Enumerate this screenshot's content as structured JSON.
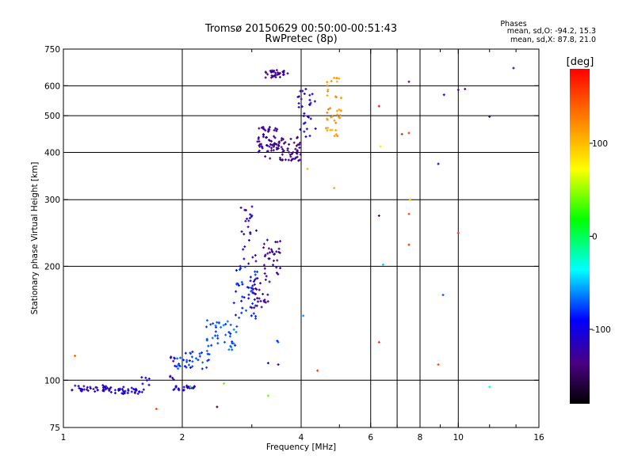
{
  "chart_data": {
    "type": "scatter",
    "title": "Tromsø 20150629 00:50:00-00:51:43",
    "subtitle": "RwPretec (8p)",
    "xlabel": "Frequency [MHz]",
    "ylabel": "Stationary phase Virtual Height [km]",
    "x_scale": "log2",
    "y_scale": "log",
    "xlim": [
      1,
      16
    ],
    "ylim": [
      75,
      750
    ],
    "x_ticks": [
      1,
      2,
      4,
      6,
      8,
      10,
      16
    ],
    "x_tick_labels": [
      "1",
      "2",
      "4",
      "6",
      "8",
      "10",
      "16"
    ],
    "x_minor_ticks": [
      3,
      5,
      7,
      9,
      12,
      14
    ],
    "x_grid_lines": [
      2,
      4,
      6,
      7,
      8,
      10
    ],
    "y_ticks": [
      75,
      100,
      200,
      300,
      400,
      500,
      600,
      750
    ],
    "y_tick_labels": [
      "75",
      "100",
      "200",
      "300",
      "400",
      "500",
      "600",
      "750"
    ],
    "y_grid_lines": [
      100,
      200,
      300,
      400,
      500,
      600
    ],
    "grid": true,
    "phase_stats": {
      "heading": "Phases",
      "line_o": "mean, sd,O: -94.2, 15.3",
      "line_x": "mean, sd,X:  87.8, 21.0"
    },
    "colorbar": {
      "label": "[deg]",
      "range": [
        -180,
        180
      ],
      "ticks": [
        100,
        0,
        -100
      ],
      "tick_labels": [
        "100",
        "0",
        "-100"
      ]
    },
    "series": [
      {
        "color_by": "phase_deg",
        "traces": [
          {
            "f_range": [
              1.05,
              1.32
            ],
            "h_range": [
              93,
              97
            ],
            "n": 40,
            "phase": -115
          },
          {
            "f_range": [
              1.32,
              1.62
            ],
            "h_range": [
              92,
              96
            ],
            "n": 32,
            "phase": -108
          },
          {
            "f_range": [
              1.55,
              1.65
            ],
            "h_range": [
              97,
              102
            ],
            "n": 6,
            "phase": -100
          },
          {
            "f_range": [
              1.85,
              1.92
            ],
            "h_range": [
              100,
              118
            ],
            "n": 10,
            "phase": -118
          },
          {
            "f_range": [
              1.9,
              2.15
            ],
            "h_range": [
              94,
              97
            ],
            "n": 24,
            "phase": -108
          },
          {
            "f_range": [
              1.93,
              2.35
            ],
            "h_range": [
              107,
              120
            ],
            "n": 36,
            "phase": -78
          },
          {
            "f_range": [
              2.3,
              2.75
            ],
            "h_range": [
              120,
              145
            ],
            "n": 40,
            "phase": -72
          },
          {
            "f_range": [
              2.7,
              3.1
            ],
            "h_range": [
              145,
              200
            ],
            "n": 44,
            "phase": -85
          },
          {
            "f_range": [
              2.8,
              3.1
            ],
            "h_range": [
              200,
              300
            ],
            "n": 26,
            "phase": -112
          },
          {
            "f_range": [
              3.0,
              3.35
            ],
            "h_range": [
              155,
              190
            ],
            "n": 30,
            "phase": -132
          },
          {
            "f_range": [
              3.2,
              3.55
            ],
            "h_range": [
              190,
              235
            ],
            "n": 32,
            "phase": -128
          },
          {
            "f_range": [
              3.1,
              3.5
            ],
            "h_range": [
              385,
              470
            ],
            "n": 60,
            "phase": -128
          },
          {
            "f_range": [
              3.5,
              4.0
            ],
            "h_range": [
              380,
              440
            ],
            "n": 55,
            "phase": -135
          },
          {
            "f_range": [
              3.9,
              4.35
            ],
            "h_range": [
              440,
              590
            ],
            "n": 30,
            "phase": -112
          },
          {
            "f_range": [
              3.25,
              3.7
            ],
            "h_range": [
              630,
              660
            ],
            "n": 35,
            "phase": -130
          },
          {
            "f_range": [
              4.6,
              5.05
            ],
            "h_range": [
              440,
              640
            ],
            "n": 40,
            "phase": 118
          }
        ],
        "points": [
          {
            "f": 1.07,
            "h": 116,
            "phase": 140
          },
          {
            "f": 1.72,
            "h": 84,
            "phase": 150
          },
          {
            "f": 2.45,
            "h": 85,
            "phase": -150
          },
          {
            "f": 2.55,
            "h": 98,
            "phase": 40
          },
          {
            "f": 2.1,
            "h": 96,
            "phase": 35
          },
          {
            "f": 3.3,
            "h": 91,
            "phase": 40
          },
          {
            "f": 3.5,
            "h": 110,
            "phase": -130
          },
          {
            "f": 3.3,
            "h": 111,
            "phase": -100
          },
          {
            "f": 3.48,
            "h": 127,
            "phase": -85
          },
          {
            "f": 3.5,
            "h": 126,
            "phase": -70
          },
          {
            "f": 4.05,
            "h": 148,
            "phase": -60
          },
          {
            "f": 4.4,
            "h": 106,
            "phase": 160
          },
          {
            "f": 4.85,
            "h": 322,
            "phase": 110
          },
          {
            "f": 4.15,
            "h": 362,
            "phase": 100
          },
          {
            "f": 6.3,
            "h": 530,
            "phase": 175
          },
          {
            "f": 6.35,
            "h": 415,
            "phase": 80
          },
          {
            "f": 6.3,
            "h": 272,
            "phase": -150
          },
          {
            "f": 6.45,
            "h": 202,
            "phase": -50
          },
          {
            "f": 6.3,
            "h": 126,
            "phase": 165
          },
          {
            "f": 7.5,
            "h": 615,
            "phase": -135
          },
          {
            "f": 7.2,
            "h": 447,
            "phase": 175
          },
          {
            "f": 7.5,
            "h": 450,
            "phase": 160
          },
          {
            "f": 7.55,
            "h": 300,
            "phase": 105
          },
          {
            "f": 7.5,
            "h": 275,
            "phase": 150
          },
          {
            "f": 7.5,
            "h": 228,
            "phase": 165
          },
          {
            "f": 8.9,
            "h": 373,
            "phase": -110
          },
          {
            "f": 9.2,
            "h": 568,
            "phase": -90
          },
          {
            "f": 9.15,
            "h": 168,
            "phase": -75
          },
          {
            "f": 8.9,
            "h": 110,
            "phase": 150
          },
          {
            "f": 10.0,
            "h": 585,
            "phase": -130
          },
          {
            "f": 10.4,
            "h": 588,
            "phase": -140
          },
          {
            "f": 10.0,
            "h": 245,
            "phase": 160
          },
          {
            "f": 12.0,
            "h": 497,
            "phase": -110
          },
          {
            "f": 12.0,
            "h": 96,
            "phase": -30
          },
          {
            "f": 13.8,
            "h": 668,
            "phase": -120
          }
        ]
      }
    ]
  }
}
